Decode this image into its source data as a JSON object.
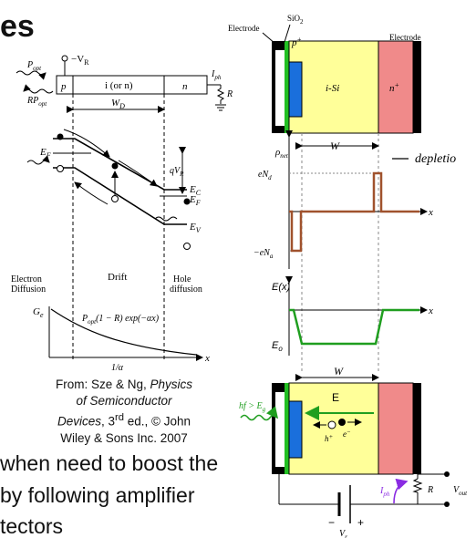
{
  "slide": {
    "title_fragment": "es",
    "caption": {
      "line1_prefix": "From: Sze & Ng, ",
      "line1_italic": "Physics",
      "line2_italic": "of Semiconductor",
      "line3_italic": "Devices",
      "line3_suffix": ", 3",
      "line3_sup": "rd",
      "line3_end": " ed., © John",
      "line4": "Wiley & Sons Inc. 2007"
    },
    "bullet_lines": [
      "when need to boost the",
      "by following amplifier",
      "tectors"
    ]
  },
  "left_figure": {
    "labels": {
      "vr": "−V",
      "vr_sub": "R",
      "popt": "P",
      "popt_sub": "opt",
      "rpopt": "RP",
      "rpopt_sub": "opt",
      "p": "p",
      "i": "i (or n)",
      "n": "n",
      "iph": "I",
      "iph_sub": "ph",
      "wd": "W",
      "wd_sub": "D",
      "ef_left": "E",
      "ef_left_sub": "F",
      "qvr": "qV",
      "qvr_sub": "R",
      "ec": "E",
      "ec_sub": "C",
      "ef_right": "E",
      "ef_right_sub": "F",
      "ev": "E",
      "ev_sub": "V",
      "electron": "Electron",
      "diffusion_l": "Diffusion",
      "drift": "Drift",
      "hole": "Hole",
      "diffusion_r": "diffusion",
      "ge": "G",
      "ge_sub": "e",
      "formula": "P",
      "formula_sub": "opt",
      "formula_rest": "(1 − R) exp(−αx)",
      "inv_alpha": "1/α",
      "x": "x",
      "r_load": "R"
    }
  },
  "right_figure": {
    "labels": {
      "sio2": "SiO",
      "sio2_sub": "2",
      "electrode_l": "Electrode",
      "electrode_r": "Electrode",
      "pplus": "p",
      "pplus_sup": "+",
      "isi": "i-Si",
      "nplus": "n",
      "nplus_sup": "+",
      "rho": "ρ",
      "rho_sub": "net",
      "w1": "W",
      "end": "eN",
      "end_sub": "d",
      "ena": "−eN",
      "ena_sub": "a",
      "x1": "x",
      "ex": "E(x)",
      "eo": "E",
      "eo_sub": "o",
      "x2": "x",
      "w2": "W",
      "e_field": "E",
      "hf": "hf > E",
      "hf_sub": "g",
      "hplus": "h",
      "hplus_sup": "+",
      "eminus": "e",
      "eminus_sup": "−",
      "iph": "I",
      "iph_sub": "ph",
      "r": "R",
      "vout": "V",
      "vout_sub": "out",
      "minus": "−",
      "plus": "+",
      "vr": "V",
      "vr_sub": "r",
      "handwriting": "— depletion"
    }
  },
  "colors": {
    "electrode": "#000000",
    "pplus": "#1a6fdc",
    "intrinsic": "#ffff99",
    "nplus": "#f08a8a",
    "contact_green": "#22c022",
    "charge": "#a0522d",
    "field": "#1f9e1f",
    "current": "#8a2be2"
  }
}
